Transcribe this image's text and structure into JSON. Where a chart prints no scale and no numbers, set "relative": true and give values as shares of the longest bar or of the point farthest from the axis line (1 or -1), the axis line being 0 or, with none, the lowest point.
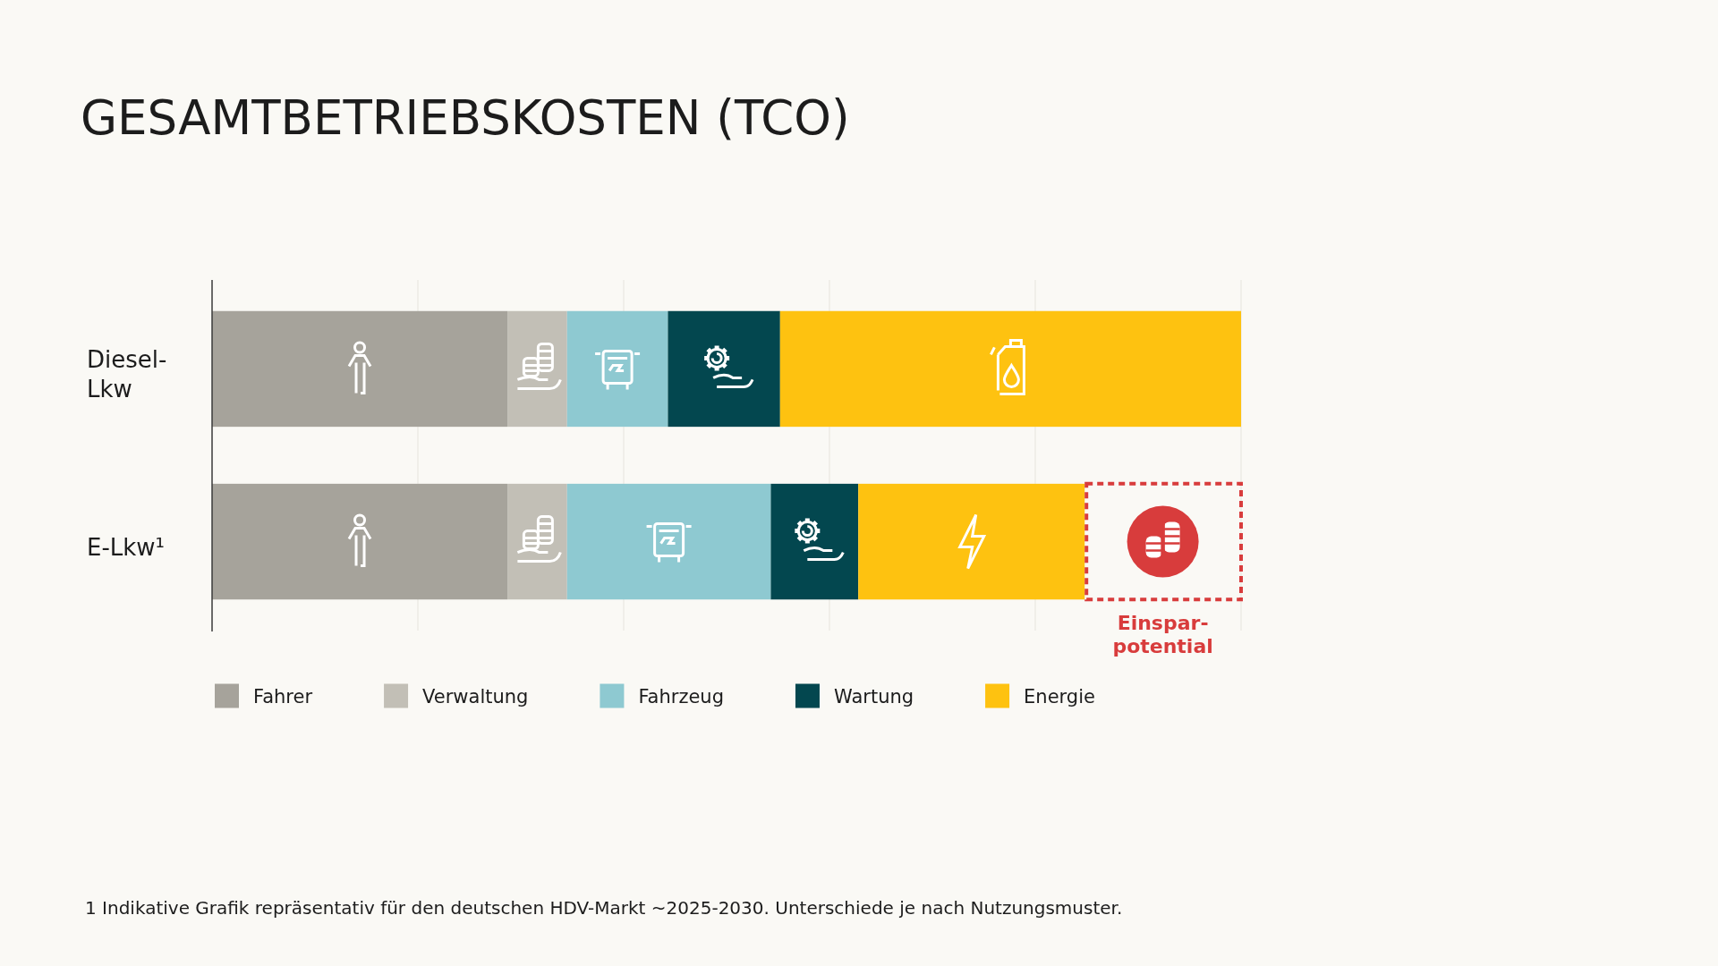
{
  "chart_data": {
    "type": "bar",
    "orientation": "horizontal",
    "stacked": true,
    "relative": true,
    "title": "GESAMTBETRIEBSKOSTEN (TCO)",
    "categories": [
      "Diesel-Lkw",
      "E-Lkw¹"
    ],
    "series": [
      {
        "name": "Fahrer",
        "color": "#a6a39b",
        "values": [
          0.287,
          0.287
        ]
      },
      {
        "name": "Verwaltung",
        "color": "#c2bfb6",
        "values": [
          0.058,
          0.058
        ]
      },
      {
        "name": "Fahrzeug",
        "color": "#8ec9d1",
        "values": [
          0.098,
          0.198
        ]
      },
      {
        "name": "Wartung",
        "color": "#03474f",
        "values": [
          0.109,
          0.085
        ]
      },
      {
        "name": "Energie",
        "color": "#fec210",
        "values": [
          0.448,
          0.22
        ]
      }
    ],
    "grid": "x",
    "legend": "bottom",
    "annotations": [
      "Einspar-potential",
      "1 Indikative Grafik repräsentativ für den deutschen HDV-Markt ~2025-2030. Unterschiede je nach Nutzungsmuster."
    ]
  }
}
